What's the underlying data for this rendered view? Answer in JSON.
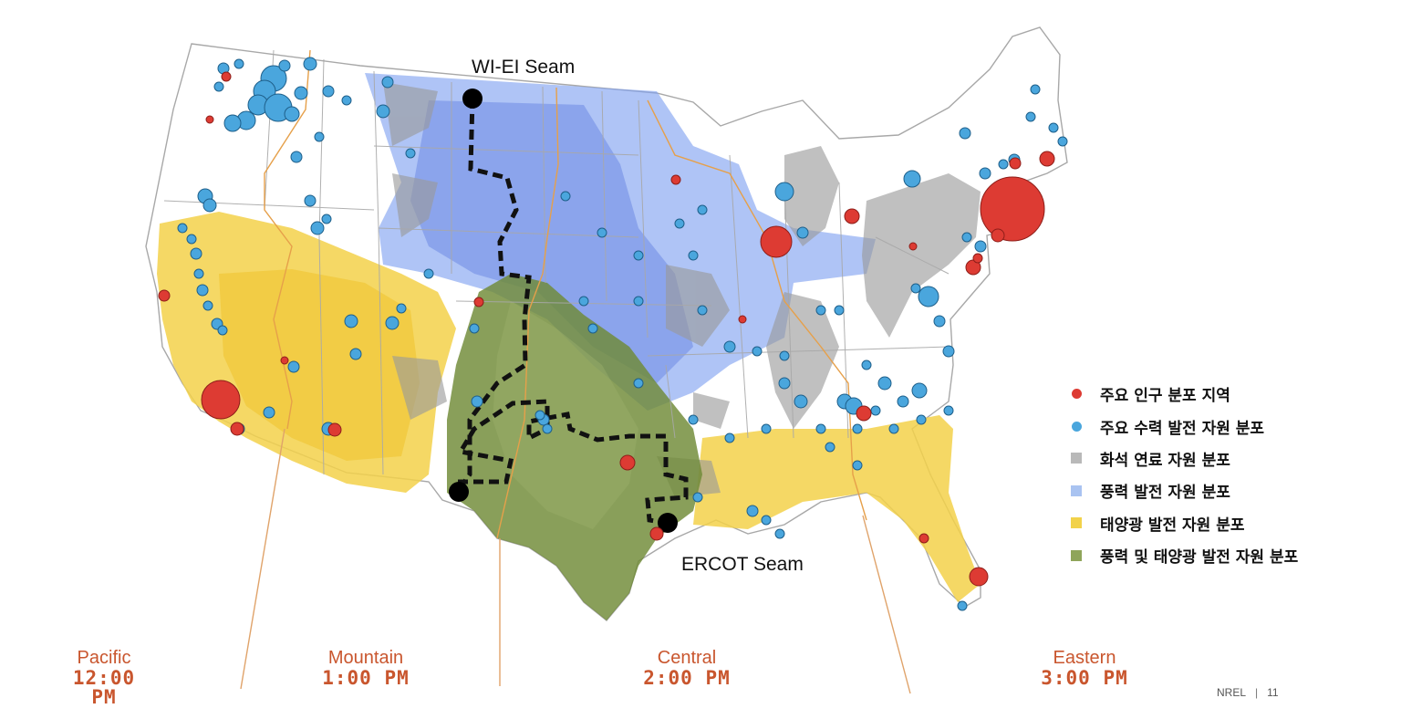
{
  "seams": {
    "north": "WI-EI Seam",
    "south": "ERCOT Seam"
  },
  "time_zones": [
    {
      "zone": "Pacific",
      "time": "12:00 PM"
    },
    {
      "zone": "Mountain",
      "time": "1:00 PM"
    },
    {
      "zone": "Central",
      "time": "2:00 PM"
    },
    {
      "zone": "Eastern",
      "time": "3:00 PM"
    }
  ],
  "legend": [
    {
      "label": "주요 인구 분포 지역",
      "shape": "circle",
      "color": "#dd3b33"
    },
    {
      "label": "주요 수력 발전 자원 분포",
      "shape": "circle",
      "color": "#4aa6dd"
    },
    {
      "label": "화석 연료 자원 분포",
      "shape": "square",
      "color": "#b9b9b9"
    },
    {
      "label": "풍력 발전 자원 분포",
      "shape": "square",
      "color": "#a9c3f1"
    },
    {
      "label": "태양광 발전 자원 분포",
      "shape": "square",
      "color": "#f2d24a"
    },
    {
      "label": "풍력 및 태양광 발전 자원 분포",
      "shape": "square",
      "color": "#8fa55a"
    }
  ],
  "colors": {
    "population": "#dd3b33",
    "hydro": "#4aa6dd",
    "fossil": "#a7a7a7",
    "wind": "#6f94e8",
    "solar": "#f2cc35",
    "wind_solar": "#6f8a36",
    "timezone_text": "#c9562e"
  },
  "footer": {
    "org": "NREL",
    "page": "11"
  }
}
